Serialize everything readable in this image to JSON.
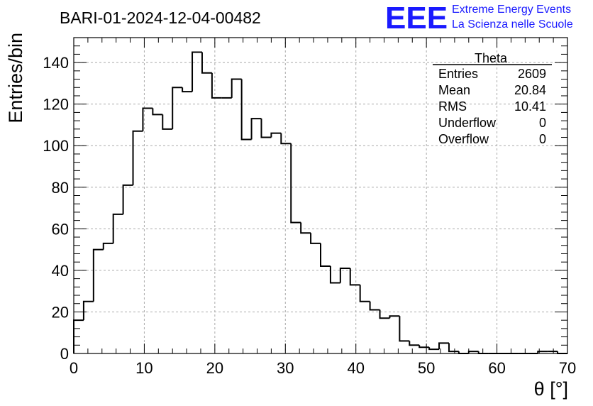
{
  "chart_data": {
    "type": "histogram",
    "title": "BARI-01-2024-12-04-00482",
    "xlabel": "θ [°]",
    "ylabel": "Entries/bin",
    "xlim": [
      0,
      70
    ],
    "ylim": [
      0,
      152
    ],
    "bin_width": 1.4,
    "values": [
      16,
      25,
      50,
      53,
      67,
      81,
      107,
      118,
      115,
      108,
      128,
      126,
      145,
      135,
      123,
      123,
      132,
      103,
      113,
      104,
      106,
      101,
      63,
      58,
      53,
      42,
      34,
      41,
      33,
      25,
      21,
      17,
      18,
      6,
      4,
      3,
      2,
      5,
      1,
      0,
      1,
      0,
      0,
      0,
      0,
      0,
      0,
      1,
      1,
      0
    ],
    "xticks": [
      0,
      10,
      20,
      30,
      40,
      50,
      60,
      70
    ],
    "yticks": [
      0,
      20,
      40,
      60,
      80,
      100,
      120,
      140
    ],
    "grid": true,
    "stats_box": {
      "name": "Theta",
      "rows": [
        {
          "label": "Entries",
          "value": "2609"
        },
        {
          "label": "Mean",
          "value": "20.84"
        },
        {
          "label": "RMS",
          "value": "10.41"
        },
        {
          "label": "Underflow",
          "value": "0"
        },
        {
          "label": "Overflow",
          "value": "0"
        }
      ]
    }
  },
  "branding": {
    "logo": "EEE",
    "line1": "Extreme Energy Events",
    "line2": "La Scienza nelle Scuole"
  },
  "colors": {
    "line": "#000000",
    "grid": "#aaaaaa",
    "brand": "#1a1aff"
  }
}
